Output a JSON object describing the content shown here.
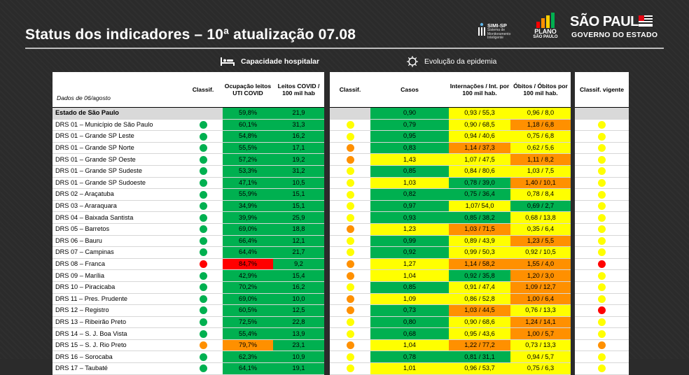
{
  "title": "Status dos indicadores – 10ª atualização 07.08",
  "logos": {
    "simi": {
      "brand": "SIMI-SP",
      "sub": "Sistema de Monitoramento Inteligente"
    },
    "plano": {
      "line1": "PLANO",
      "line2": "SÃO PAULO"
    },
    "sp": {
      "line1": "SÃO PAULO",
      "line2": "GOVERNO DO ESTADO"
    }
  },
  "legend": {
    "hospital": "Capacidade hospitalar",
    "epidemic": "Evolução da epidemia"
  },
  "header": {
    "date": "Dados de 06/agosto",
    "classif1": "Classif.",
    "uti": "Ocupação leitos UTI COVID",
    "leitos": "Leitos COVID / 100 mil hab",
    "classif2": "Classif.",
    "casos": "Casos",
    "internacoes": "Internações / Int. por 100 mil hab.",
    "obitos": "Óbitos / Óbitos por 100 mil hab.",
    "vigente": "Classif. vigente"
  },
  "colors": {
    "green": "#00b050",
    "yellow": "#ffff00",
    "orange": "#ff9000",
    "red": "#ff0000"
  },
  "rows": [
    {
      "name": "Estado de São Paulo",
      "c1": "",
      "uti": "59,8%",
      "uti_c": "g",
      "leitos": "21,9",
      "leitos_c": "g",
      "c2": "",
      "casos": "0,90",
      "casos_c": "g",
      "int": "0,93 / 55,3",
      "int_c": "y",
      "obi": "0,96 / 8,0",
      "obi_c": "y",
      "cv": "",
      "state": true
    },
    {
      "name": "DRS 01 – Município de São Paulo",
      "c1": "g",
      "uti": "60,1%",
      "uti_c": "g",
      "leitos": "31,3",
      "leitos_c": "g",
      "c2": "y",
      "casos": "0,79",
      "casos_c": "g",
      "int": "0,90 / 68,5",
      "int_c": "y",
      "obi": "1,18 / 6,8",
      "obi_c": "o",
      "cv": "y"
    },
    {
      "name": "DRS 01 – Grande SP Leste",
      "c1": "g",
      "uti": "54,8%",
      "uti_c": "g",
      "leitos": "16,2",
      "leitos_c": "g",
      "c2": "y",
      "casos": "0,95",
      "casos_c": "g",
      "int": "0,94 / 40,6",
      "int_c": "y",
      "obi": "0,75 / 6,8",
      "obi_c": "y",
      "cv": "y"
    },
    {
      "name": "DRS 01 – Grande SP Norte",
      "c1": "g",
      "uti": "55,5%",
      "uti_c": "g",
      "leitos": "17,1",
      "leitos_c": "g",
      "c2": "o",
      "casos": "0,83",
      "casos_c": "g",
      "int": "1,14 / 37,3",
      "int_c": "o",
      "obi": "0,62 / 5,6",
      "obi_c": "y",
      "cv": "y"
    },
    {
      "name": "DRS 01 – Grande SP Oeste",
      "c1": "g",
      "uti": "57,2%",
      "uti_c": "g",
      "leitos": "19,2",
      "leitos_c": "g",
      "c2": "o",
      "casos": "1,43",
      "casos_c": "y",
      "int": "1,07 / 47,5",
      "int_c": "y",
      "obi": "1,11 / 8,2",
      "obi_c": "o",
      "cv": "y"
    },
    {
      "name": "DRS 01 – Grande SP Sudeste",
      "c1": "g",
      "uti": "53,3%",
      "uti_c": "g",
      "leitos": "31,2",
      "leitos_c": "g",
      "c2": "y",
      "casos": "0,85",
      "casos_c": "g",
      "int": "0,84 / 80,6",
      "int_c": "y",
      "obi": "1,03 / 7,5",
      "obi_c": "y",
      "cv": "y"
    },
    {
      "name": "DRS 01 – Grande SP Sudoeste",
      "c1": "g",
      "uti": "47,1%",
      "uti_c": "g",
      "leitos": "10,5",
      "leitos_c": "g",
      "c2": "y",
      "casos": "1,03",
      "casos_c": "y",
      "int": "0,78 / 39,0",
      "int_c": "g",
      "obi": "1,40 / 10,1",
      "obi_c": "o",
      "cv": "y"
    },
    {
      "name": "DRS 02 – Araçatuba",
      "c1": "g",
      "uti": "55,9%",
      "uti_c": "g",
      "leitos": "15,1",
      "leitos_c": "g",
      "c2": "y",
      "casos": "0,82",
      "casos_c": "g",
      "int": "0,75 / 36,4",
      "int_c": "g",
      "obi": "0,78 / 8,4",
      "obi_c": "y",
      "cv": "y"
    },
    {
      "name": "DRS 03 – Araraquara",
      "c1": "g",
      "uti": "34,9%",
      "uti_c": "g",
      "leitos": "15,1",
      "leitos_c": "g",
      "c2": "y",
      "casos": "0,97",
      "casos_c": "g",
      "int": "1,07/ 54,0",
      "int_c": "y",
      "obi": "0,69 / 2,7",
      "obi_c": "g",
      "cv": "y"
    },
    {
      "name": "DRS 04 – Baixada Santista",
      "c1": "g",
      "uti": "39,9%",
      "uti_c": "g",
      "leitos": "25,9",
      "leitos_c": "g",
      "c2": "y",
      "casos": "0,93",
      "casos_c": "g",
      "int": "0,85 / 38,2",
      "int_c": "g",
      "obi": "0,68 / 13,8",
      "obi_c": "y",
      "cv": "y"
    },
    {
      "name": "DRS 05 – Barretos",
      "c1": "g",
      "uti": "69,0%",
      "uti_c": "g",
      "leitos": "18,8",
      "leitos_c": "g",
      "c2": "o",
      "casos": "1,23",
      "casos_c": "y",
      "int": "1,03 / 71,5",
      "int_c": "o",
      "obi": "0,35 / 6,4",
      "obi_c": "y",
      "cv": "y"
    },
    {
      "name": "DRS 06 – Bauru",
      "c1": "g",
      "uti": "66,4%",
      "uti_c": "g",
      "leitos": "12,1",
      "leitos_c": "g",
      "c2": "y",
      "casos": "0,99",
      "casos_c": "g",
      "int": "0,89 / 43,9",
      "int_c": "y",
      "obi": "1,23 / 5,5",
      "obi_c": "o",
      "cv": "y"
    },
    {
      "name": "DRS 07 – Campinas",
      "c1": "g",
      "uti": "64,4%",
      "uti_c": "g",
      "leitos": "21,7",
      "leitos_c": "g",
      "c2": "y",
      "casos": "0,92",
      "casos_c": "g",
      "int": "0,99 / 50,3",
      "int_c": "y",
      "obi": "0,92 / 10,5",
      "obi_c": "y",
      "cv": "y"
    },
    {
      "name": "DRS 08 – Franca",
      "c1": "r",
      "uti": "84,7%",
      "uti_c": "r",
      "leitos": "9,2",
      "leitos_c": "g",
      "c2": "o",
      "casos": "1,27",
      "casos_c": "y",
      "int": "1,14 / 58,2",
      "int_c": "o",
      "obi": "1,55 / 4,0",
      "obi_c": "o",
      "cv": "r"
    },
    {
      "name": "DRS 09 – Marília",
      "c1": "g",
      "uti": "42,9%",
      "uti_c": "g",
      "leitos": "15,4",
      "leitos_c": "g",
      "c2": "o",
      "casos": "1,04",
      "casos_c": "y",
      "int": "0,92 / 35,8",
      "int_c": "g",
      "obi": "1,20 / 3,0",
      "obi_c": "o",
      "cv": "y"
    },
    {
      "name": "DRS 10 – Piracicaba",
      "c1": "g",
      "uti": "70,2%",
      "uti_c": "g",
      "leitos": "16,2",
      "leitos_c": "g",
      "c2": "y",
      "casos": "0,85",
      "casos_c": "g",
      "int": "0,91 / 47,4",
      "int_c": "y",
      "obi": "1,09 / 12,7",
      "obi_c": "o",
      "cv": "y"
    },
    {
      "name": "DRS 11 – Pres. Prudente",
      "c1": "g",
      "uti": "69,0%",
      "uti_c": "g",
      "leitos": "10,0",
      "leitos_c": "g",
      "c2": "o",
      "casos": "1,09",
      "casos_c": "y",
      "int": "0,86 / 52,8",
      "int_c": "y",
      "obi": "1,00 / 6,4",
      "obi_c": "o",
      "cv": "y"
    },
    {
      "name": "DRS 12 – Registro",
      "c1": "g",
      "uti": "60,5%",
      "uti_c": "g",
      "leitos": "12,5",
      "leitos_c": "g",
      "c2": "o",
      "casos": "0,73",
      "casos_c": "g",
      "int": "1,03 / 44,5",
      "int_c": "o",
      "obi": "0,76 / 13,3",
      "obi_c": "y",
      "cv": "r"
    },
    {
      "name": "DRS 13 – Ribeirão Preto",
      "c1": "g",
      "uti": "72,5%",
      "uti_c": "g",
      "leitos": "22,8",
      "leitos_c": "g",
      "c2": "y",
      "casos": "0,80",
      "casos_c": "g",
      "int": "0,90 / 68,6",
      "int_c": "y",
      "obi": "1,24 / 14,1",
      "obi_c": "o",
      "cv": "y"
    },
    {
      "name": "DRS 14 – S. J. Boa Vista",
      "c1": "g",
      "uti": "55,4%",
      "uti_c": "g",
      "leitos": "13,9",
      "leitos_c": "g",
      "c2": "y",
      "casos": "0,68",
      "casos_c": "g",
      "int": "0,95 / 43,6",
      "int_c": "y",
      "obi": "1,00 / 5,7",
      "obi_c": "o",
      "cv": "y"
    },
    {
      "name": "DRS 15 – S. J. Rio Preto",
      "c1": "o",
      "uti": "79,7%",
      "uti_c": "o",
      "leitos": "23,1",
      "leitos_c": "g",
      "c2": "o",
      "casos": "1,04",
      "casos_c": "y",
      "int": "1,22 / 77,2",
      "int_c": "o",
      "obi": "0,73 / 13,3",
      "obi_c": "y",
      "cv": "o"
    },
    {
      "name": "DRS 16 – Sorocaba",
      "c1": "g",
      "uti": "62,3%",
      "uti_c": "g",
      "leitos": "10,9",
      "leitos_c": "g",
      "c2": "y",
      "casos": "0,78",
      "casos_c": "g",
      "int": "0,81 / 31,1",
      "int_c": "g",
      "obi": "0,94 / 5,7",
      "obi_c": "y",
      "cv": "y"
    },
    {
      "name": "DRS 17 – Taubaté",
      "c1": "g",
      "uti": "64,1%",
      "uti_c": "g",
      "leitos": "19,1",
      "leitos_c": "g",
      "c2": "y",
      "casos": "1,01",
      "casos_c": "y",
      "int": "0,96 / 53,7",
      "int_c": "y",
      "obi": "0,75 / 6,3",
      "obi_c": "y",
      "cv": "y"
    }
  ]
}
